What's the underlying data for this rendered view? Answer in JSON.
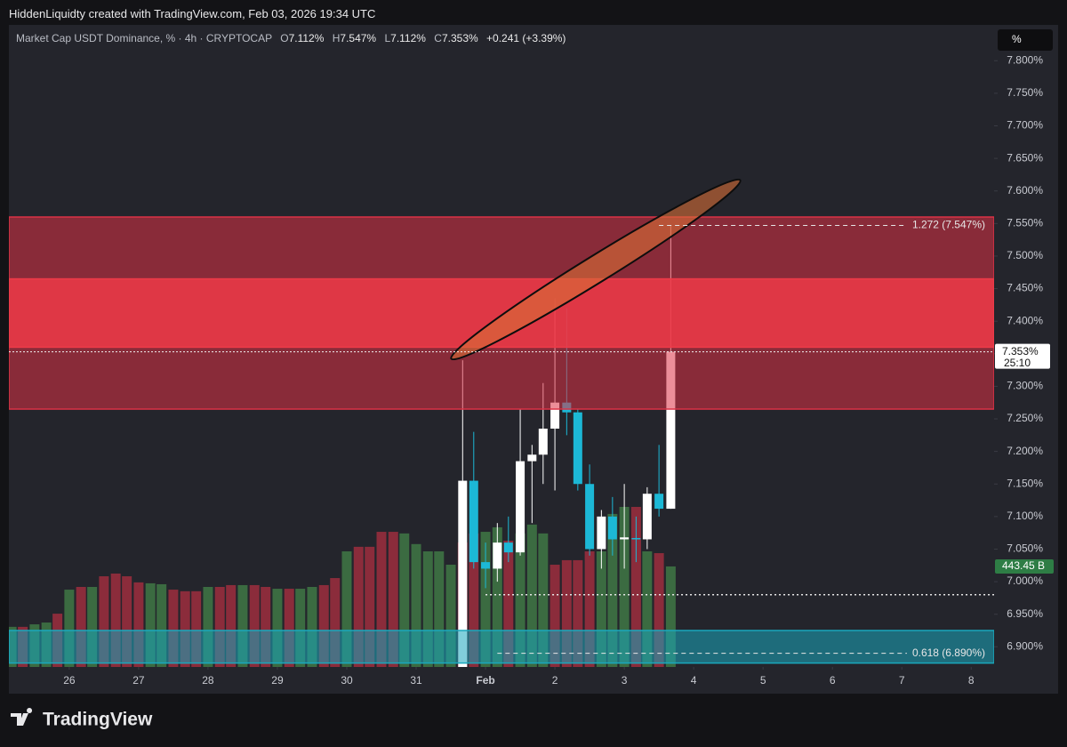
{
  "chart_data": {
    "type": "candlestick",
    "watermark": "HiddenLiquidty created with TradingView.com, Feb 03, 2026 19:34 UTC",
    "symbol": "Market Cap USDT Dominance, % · 4h · CRYPTOCAP",
    "ohlc": [
      {
        "key": "O",
        "text": "7.112%"
      },
      {
        "key": "H",
        "text": "7.547%"
      },
      {
        "key": "L",
        "text": "7.112%"
      },
      {
        "key": "C",
        "text": "7.353%"
      }
    ],
    "change": "+0.241 (+3.39%)",
    "scale_button": "%",
    "brand": "TradingView",
    "xlim": [
      25.13,
      39.33
    ],
    "xticks": [
      26,
      27,
      28,
      29,
      30,
      31,
      {
        "value": 32,
        "label": "Feb"
      },
      {
        "value": 33,
        "label": "2"
      },
      {
        "value": 34,
        "label": "3"
      },
      {
        "value": 35,
        "label": "4"
      },
      {
        "value": 36,
        "label": "5"
      },
      {
        "value": 37,
        "label": "6"
      },
      {
        "value": 38,
        "label": "7"
      },
      {
        "value": 39,
        "label": "8"
      }
    ],
    "ylim": [
      6.869,
      7.855
    ],
    "yticks": [
      {
        "value": 6.9,
        "label": "6.900%"
      },
      {
        "value": 6.95,
        "label": "6.950%"
      },
      {
        "value": 7.0,
        "label": "7.000%"
      },
      {
        "value": 7.05,
        "label": "7.050%"
      },
      {
        "value": 7.1,
        "label": "7.100%"
      },
      {
        "value": 7.15,
        "label": "7.150%"
      },
      {
        "value": 7.2,
        "label": "7.200%"
      },
      {
        "value": 7.25,
        "label": "7.250%"
      },
      {
        "value": 7.3,
        "label": "7.300%"
      },
      {
        "value": 7.35,
        "label": "7.350%"
      },
      {
        "value": 7.4,
        "label": "7.400%"
      },
      {
        "value": 7.45,
        "label": "7.450%"
      },
      {
        "value": 7.5,
        "label": "7.500%"
      },
      {
        "value": 7.55,
        "label": "7.550%"
      },
      {
        "value": 7.6,
        "label": "7.600%"
      },
      {
        "value": 7.65,
        "label": "7.650%"
      },
      {
        "value": 7.7,
        "label": "7.700%"
      },
      {
        "value": 7.75,
        "label": "7.750%"
      },
      {
        "value": 7.8,
        "label": "7.800%"
      }
    ],
    "candles": {
      "color_up": "#ffffff",
      "color_down": "#1cb8d6",
      "x": [
        31.67,
        31.83,
        32,
        32.17,
        32.33,
        32.5,
        32.67,
        32.83,
        33,
        33.17,
        33.33,
        33.5,
        33.67,
        33.83,
        34,
        34.17,
        34.33,
        34.5,
        34.67
      ],
      "open": [
        6.85,
        7.155,
        7.03,
        7.02,
        7.06,
        7.045,
        7.185,
        7.195,
        7.235,
        7.275,
        7.26,
        7.15,
        7.05,
        7.1,
        7.065,
        7.067,
        7.065,
        7.135,
        7.112
      ],
      "high": [
        7.34,
        7.23,
        7.06,
        7.09,
        7.1,
        7.265,
        7.21,
        7.305,
        7.435,
        7.42,
        7.265,
        7.18,
        7.11,
        7.13,
        7.15,
        7.1,
        7.145,
        7.21,
        7.547
      ],
      "low": [
        6.84,
        7.02,
        6.99,
        7.0,
        7.03,
        7.04,
        7.09,
        7.15,
        7.14,
        7.225,
        7.14,
        7.04,
        7.02,
        7.04,
        7.02,
        7.03,
        7.05,
        7.1,
        7.112
      ],
      "close": [
        7.155,
        7.03,
        7.02,
        7.06,
        7.045,
        7.185,
        7.195,
        7.235,
        7.275,
        7.26,
        7.15,
        7.05,
        7.1,
        7.065,
        7.068,
        7.066,
        7.135,
        7.112,
        7.353
      ]
    },
    "volume": {
      "color_up": "#3b6b41",
      "color_down": "#8b2c3b",
      "last_label": "443.45 B",
      "x": [
        25.17,
        25.33,
        25.5,
        25.67,
        25.83,
        26,
        26.17,
        26.33,
        26.5,
        26.67,
        26.83,
        27,
        27.17,
        27.33,
        27.5,
        27.67,
        27.83,
        28,
        28.17,
        28.33,
        28.5,
        28.67,
        28.83,
        29,
        29.17,
        29.33,
        29.5,
        29.67,
        29.83,
        30,
        30.17,
        30.33,
        30.5,
        30.67,
        30.83,
        31,
        31.17,
        31.33,
        31.5,
        31.67,
        31.83,
        32,
        32.17,
        32.33,
        32.5,
        32.67,
        32.83,
        33,
        33.17,
        33.33,
        33.5,
        33.67,
        33.83,
        34,
        34.17,
        34.33,
        34.5,
        34.67
      ],
      "values": [
        177,
        177,
        188,
        196,
        235,
        341,
        353,
        353,
        400,
        412,
        400,
        373,
        369,
        365,
        341,
        334,
        334,
        353,
        353,
        361,
        361,
        361,
        353,
        345,
        345,
        345,
        353,
        361,
        392,
        510,
        530,
        530,
        596,
        596,
        589,
        542,
        510,
        510,
        451,
        549,
        589,
        596,
        616,
        557,
        589,
        628,
        589,
        451,
        471,
        471,
        510,
        510,
        675,
        706,
        706,
        510,
        502,
        443.45
      ],
      "up": [
        true,
        false,
        true,
        true,
        false,
        true,
        false,
        true,
        false,
        false,
        false,
        false,
        true,
        true,
        false,
        false,
        false,
        true,
        false,
        false,
        true,
        false,
        false,
        true,
        false,
        true,
        true,
        false,
        false,
        true,
        false,
        false,
        false,
        false,
        true,
        true,
        true,
        true,
        true,
        false,
        false,
        true,
        true,
        false,
        true,
        true,
        true,
        false,
        false,
        false,
        false,
        true,
        true,
        true,
        false,
        true,
        false,
        true
      ]
    },
    "zones": [
      {
        "low": 7.265,
        "high": 7.56,
        "color": "#dc3246"
      },
      {
        "low": 7.36,
        "high": 7.465,
        "color": "#ee3a48"
      },
      {
        "low": 6.875,
        "high": 6.925,
        "color": "#1aa8bd"
      }
    ],
    "fib_levels": [
      {
        "value": 7.547,
        "label": "1.272 (7.547%)",
        "x_start": 34.5
      },
      {
        "value": 6.89,
        "label": "0.618 (6.890%)",
        "x_start": 32.17
      }
    ],
    "dotted_levels": [
      {
        "value": 6.98,
        "x_start": 32
      }
    ],
    "last_price": {
      "value": 7.353,
      "label": "7.353%",
      "countdown": "25:10"
    }
  }
}
